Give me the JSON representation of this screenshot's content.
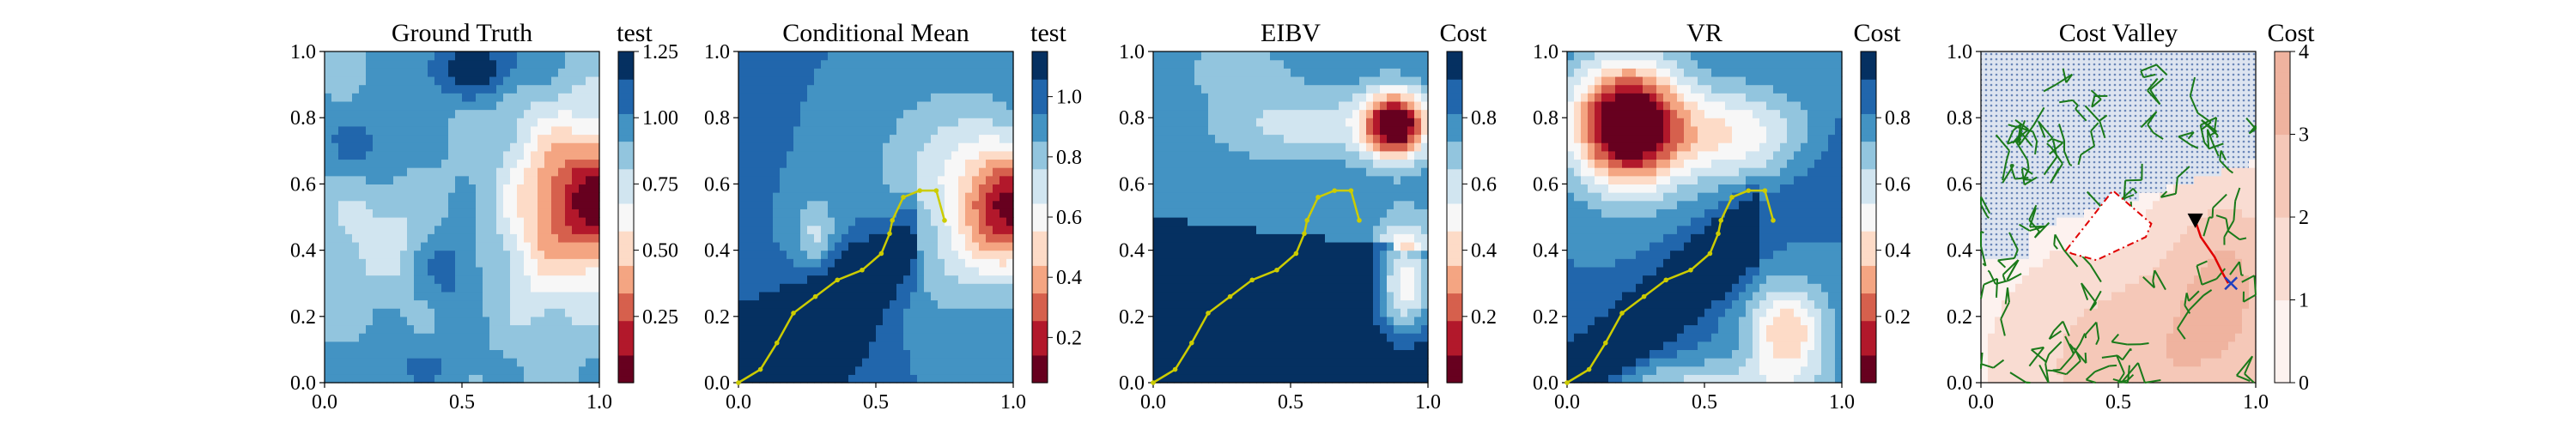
{
  "figure": {
    "background": "#ffffff"
  },
  "palettes": {
    "RdBu": [
      "#67001f",
      "#b2182b",
      "#d6604d",
      "#f4a582",
      "#fddbc7",
      "#f7f7f7",
      "#d1e5f0",
      "#92c5de",
      "#4393c3",
      "#2166ac",
      "#053061"
    ],
    "Reds_light": [
      "#fdf2ef",
      "#f9dcd2",
      "#f5c8b8",
      "#efb39f"
    ],
    "path_yellow": "#cccc00",
    "tree_green": "#1a7a1a",
    "route_red": "#e00000",
    "hatch_blue": "#6a86b8",
    "marker_black": "#000000",
    "target_blue": "#1f3fbf"
  },
  "chart_data": [
    {
      "type": "heatmap",
      "title": "Ground Truth",
      "xlim": [
        0,
        1
      ],
      "ylim": [
        0,
        1
      ],
      "xticks": [
        "0.0",
        "0.5",
        "1.0"
      ],
      "yticks": [
        "0.0",
        "0.2",
        "0.4",
        "0.6",
        "0.8",
        "1.0"
      ],
      "colorbar": {
        "label": "test",
        "ticks": [
          "0.25",
          "0.50",
          "0.75",
          "1.00",
          "1.25"
        ],
        "range": [
          0.0,
          1.25
        ]
      },
      "field": "ground_truth"
    },
    {
      "type": "heatmap",
      "title": "Conditional Mean",
      "xlim": [
        0,
        1
      ],
      "ylim": [
        0,
        1
      ],
      "xticks": [
        "0.0",
        "0.5",
        "1.0"
      ],
      "yticks": [
        "0.0",
        "0.2",
        "0.4",
        "0.6",
        "0.8",
        "1.0"
      ],
      "colorbar": {
        "label": "test",
        "ticks": [
          "0.2",
          "0.4",
          "0.6",
          "0.8",
          "1.0"
        ],
        "range": [
          0.05,
          1.15
        ]
      },
      "field": "conditional_mean",
      "path": [
        [
          0.0,
          0.0
        ],
        [
          0.08,
          0.04
        ],
        [
          0.14,
          0.12
        ],
        [
          0.2,
          0.21
        ],
        [
          0.28,
          0.26
        ],
        [
          0.36,
          0.31
        ],
        [
          0.45,
          0.34
        ],
        [
          0.52,
          0.39
        ],
        [
          0.55,
          0.45
        ],
        [
          0.56,
          0.49
        ],
        [
          0.6,
          0.56
        ],
        [
          0.66,
          0.58
        ],
        [
          0.72,
          0.58
        ],
        [
          0.75,
          0.49
        ]
      ]
    },
    {
      "type": "heatmap",
      "title": "EIBV",
      "xlim": [
        0,
        1
      ],
      "ylim": [
        0,
        1
      ],
      "xticks": [
        "0.0",
        "0.5",
        "1.0"
      ],
      "yticks": [
        "0.0",
        "0.2",
        "0.4",
        "0.6",
        "0.8",
        "1.0"
      ],
      "colorbar": {
        "label": "Cost",
        "ticks": [
          "0.2",
          "0.4",
          "0.6",
          "0.8"
        ],
        "range": [
          0.0,
          1.0
        ]
      },
      "field": "eibv",
      "path": [
        [
          0.0,
          0.0
        ],
        [
          0.08,
          0.04
        ],
        [
          0.14,
          0.12
        ],
        [
          0.2,
          0.21
        ],
        [
          0.28,
          0.26
        ],
        [
          0.36,
          0.31
        ],
        [
          0.45,
          0.34
        ],
        [
          0.52,
          0.39
        ],
        [
          0.55,
          0.45
        ],
        [
          0.56,
          0.49
        ],
        [
          0.6,
          0.56
        ],
        [
          0.66,
          0.58
        ],
        [
          0.72,
          0.58
        ],
        [
          0.75,
          0.49
        ]
      ]
    },
    {
      "type": "heatmap",
      "title": "VR",
      "xlim": [
        0,
        1
      ],
      "ylim": [
        0,
        1
      ],
      "xticks": [
        "0.0",
        "0.5",
        "1.0"
      ],
      "yticks": [
        "0.0",
        "0.2",
        "0.4",
        "0.6",
        "0.8",
        "1.0"
      ],
      "colorbar": {
        "label": "Cost",
        "ticks": [
          "0.2",
          "0.4",
          "0.6",
          "0.8"
        ],
        "range": [
          0.0,
          1.0
        ]
      },
      "field": "vr",
      "path": [
        [
          0.0,
          0.0
        ],
        [
          0.08,
          0.04
        ],
        [
          0.14,
          0.12
        ],
        [
          0.2,
          0.21
        ],
        [
          0.28,
          0.26
        ],
        [
          0.36,
          0.31
        ],
        [
          0.45,
          0.34
        ],
        [
          0.52,
          0.39
        ],
        [
          0.55,
          0.45
        ],
        [
          0.56,
          0.49
        ],
        [
          0.6,
          0.56
        ],
        [
          0.66,
          0.58
        ],
        [
          0.72,
          0.58
        ],
        [
          0.75,
          0.49
        ]
      ]
    },
    {
      "type": "heatmap",
      "title": "Cost Valley",
      "xlim": [
        0,
        1
      ],
      "ylim": [
        0,
        1
      ],
      "xticks": [
        "0.0",
        "0.5",
        "1.0"
      ],
      "yticks": [
        "0.0",
        "0.2",
        "0.4",
        "0.6",
        "0.8",
        "1.0"
      ],
      "colorbar": {
        "label": "Cost",
        "ticks": [
          "0",
          "1",
          "2",
          "3",
          "4"
        ],
        "range": [
          0,
          4
        ]
      },
      "field": "cost_valley",
      "obstacle_polygon": [
        [
          0.31,
          0.4
        ],
        [
          0.48,
          0.58
        ],
        [
          0.62,
          0.48
        ],
        [
          0.6,
          0.44
        ],
        [
          0.42,
          0.37
        ],
        [
          0.33,
          0.39
        ]
      ],
      "current_position": [
        0.78,
        0.49
      ],
      "route": [
        [
          0.78,
          0.49
        ],
        [
          0.8,
          0.44
        ],
        [
          0.85,
          0.38
        ],
        [
          0.88,
          0.33
        ],
        [
          0.9,
          0.3
        ]
      ],
      "target": [
        0.91,
        0.3
      ]
    }
  ]
}
